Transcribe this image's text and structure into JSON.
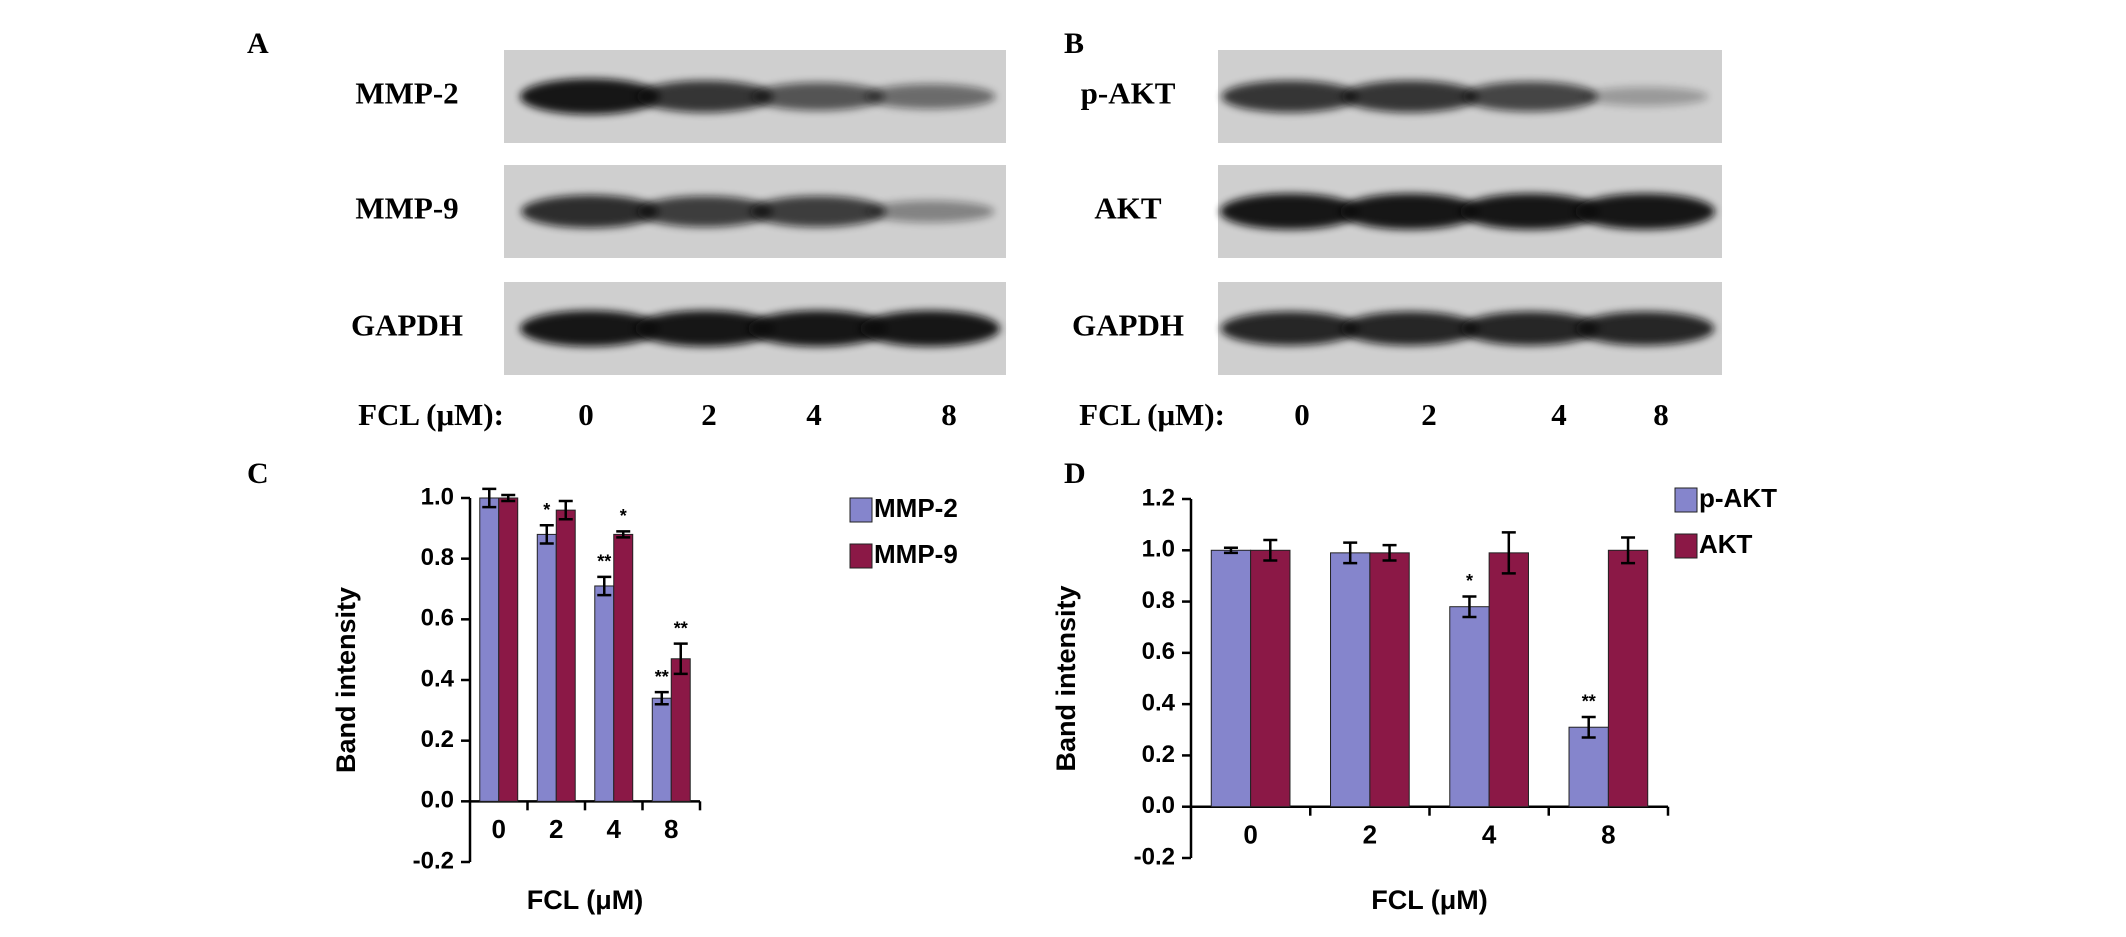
{
  "blots": [
    {
      "panel": "A",
      "rows": [
        "MMP-2",
        "MMP-9",
        "GAPDH"
      ],
      "x_label": "FCL (μM):",
      "lanes": [
        "0",
        "2",
        "4",
        "8"
      ]
    },
    {
      "panel": "B",
      "rows": [
        "p-AKT",
        "AKT",
        "GAPDH"
      ],
      "x_label": "FCL (μM):",
      "lanes": [
        "0",
        "2",
        "4",
        "8"
      ]
    }
  ],
  "chart_data": [
    {
      "type": "bar",
      "panel": "C",
      "y_label": "Band intensity",
      "x_label": "FCL (μM)",
      "categories": [
        "0",
        "2",
        "4",
        "8"
      ],
      "series": [
        {
          "name": "MMP-2",
          "color": "#8585cc",
          "values": [
            1.0,
            0.88,
            0.71,
            0.34
          ],
          "errors": [
            0.03,
            0.03,
            0.03,
            0.02
          ],
          "sig": [
            null,
            "*",
            "**",
            "**"
          ]
        },
        {
          "name": "MMP-9",
          "color": "#8b1846",
          "values": [
            1.0,
            0.96,
            0.88,
            0.47
          ],
          "errors": [
            0.01,
            0.03,
            0.01,
            0.05
          ],
          "sig": [
            null,
            null,
            "*",
            "**"
          ]
        }
      ],
      "ylim": [
        -0.2,
        1.0
      ],
      "yticks": [
        -0.2,
        {
          "value": 0,
          "label": "0.0"
        },
        0.2,
        0.4,
        0.6,
        0.8,
        {
          "value": 1,
          "label": "1.0"
        }
      ],
      "legend": "top-right"
    },
    {
      "type": "bar",
      "panel": "D",
      "y_label": "Band intensity",
      "x_label": "FCL (μM)",
      "categories": [
        "0",
        "2",
        "4",
        "8"
      ],
      "series": [
        {
          "name": "p-AKT",
          "color": "#8585cc",
          "values": [
            1.0,
            0.99,
            0.78,
            0.31
          ],
          "errors": [
            0.01,
            0.04,
            0.04,
            0.04
          ],
          "sig": [
            null,
            null,
            "*",
            "**"
          ]
        },
        {
          "name": "AKT",
          "color": "#8b1846",
          "values": [
            1.0,
            0.99,
            0.99,
            1.0
          ],
          "errors": [
            0.04,
            0.03,
            0.08,
            0.05
          ],
          "sig": [
            null,
            null,
            null,
            null
          ]
        }
      ],
      "ylim": [
        -0.2,
        1.2
      ],
      "yticks": [
        -0.2,
        {
          "value": 0,
          "label": "0.0"
        },
        0.2,
        0.4,
        0.6,
        0.8,
        {
          "value": 1,
          "label": "1.0"
        },
        1.2
      ],
      "legend": "top-right"
    }
  ]
}
